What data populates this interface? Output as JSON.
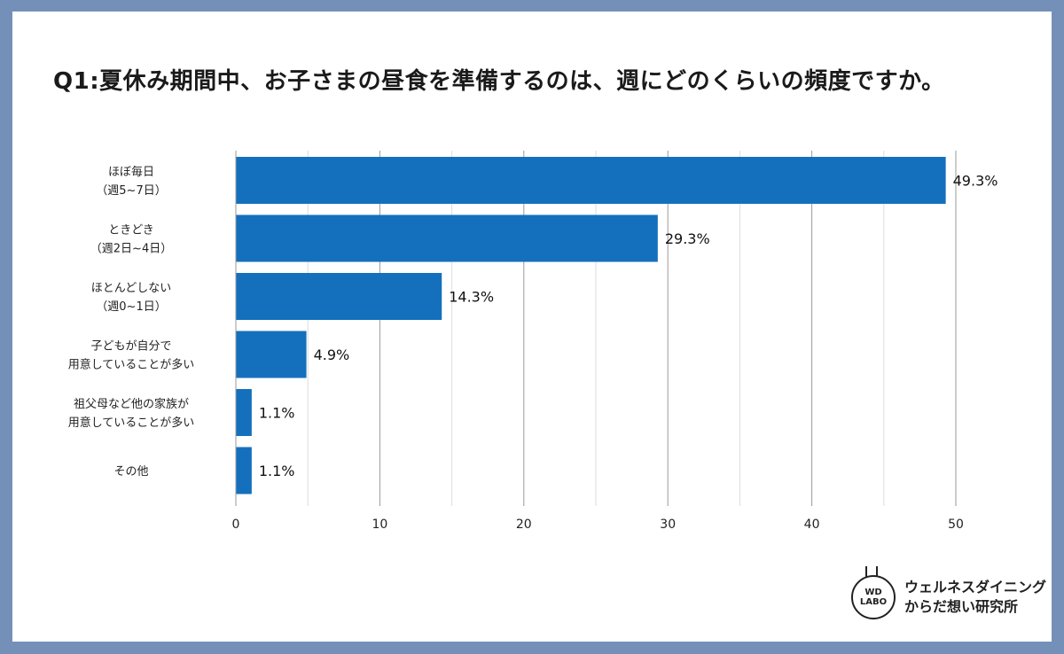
{
  "chart_data": {
    "type": "bar",
    "orientation": "horizontal",
    "title": "Q1:夏休み期間中、お子さまの昼食を準備するのは、週にどのくらいの頻度ですか。",
    "categories": [
      [
        "ほぼ毎日",
        "（週5~7日）"
      ],
      [
        "ときどき",
        "（週2日~4日）"
      ],
      [
        "ほとんどしない",
        "（週0~1日）"
      ],
      [
        "子どもが自分で",
        "用意していることが多い"
      ],
      [
        "祖父母など他の家族が",
        "用意していることが多い"
      ],
      [
        "その他"
      ]
    ],
    "values": [
      49.3,
      29.3,
      14.3,
      4.9,
      1.1,
      1.1
    ],
    "value_labels": [
      "49.3%",
      "29.3%",
      "14.3%",
      "4.9%",
      "1.1%",
      "1.1%"
    ],
    "xlim": [
      0,
      50
    ],
    "xticks": [
      0,
      10,
      20,
      30,
      40,
      50
    ],
    "grid": true,
    "bar_color": "#1470bd"
  },
  "logo": {
    "mark_line1": "WD",
    "mark_line2": "LABO",
    "text_line1": "ウェルネスダイニング",
    "text_line2": "からだ想い研究所"
  }
}
